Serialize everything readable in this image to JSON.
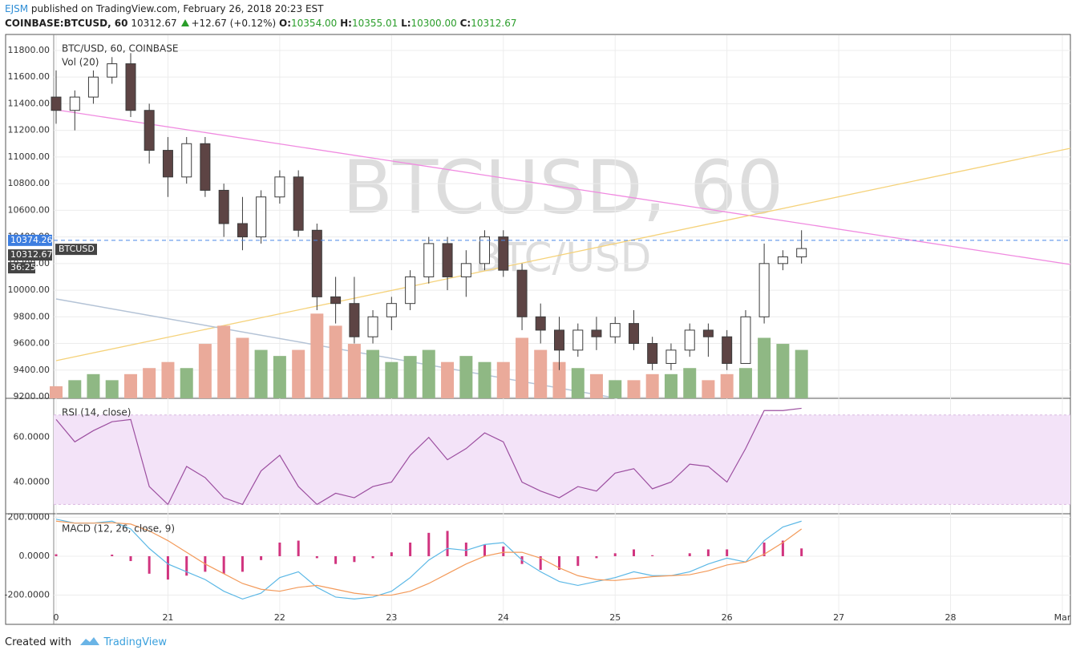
{
  "header": {
    "author": "EJSM",
    "published": "published on TradingView.com, February 26, 2018 20:23 EST",
    "symbol": "COINBASE:BTCUSD, 60",
    "last": "10312.67",
    "change": "+12.67 (+0.12%)",
    "o_label": "O:",
    "o": "10354.00",
    "h_label": "H:",
    "h": "10355.01",
    "l_label": "L:",
    "l": "10300.00",
    "c_label": "C:",
    "c": "10312.67"
  },
  "watermark": {
    "big": "BTCUSD, 60",
    "small": "BTC/USD"
  },
  "footer": {
    "created": "Created with",
    "brand": "TradingView"
  },
  "chart_data": {
    "type": "candlestick",
    "title": "BTC/USD, 60, COINBASE",
    "x": [
      20,
      20.167,
      20.333,
      20.5,
      20.667,
      20.833,
      21,
      21.167,
      21.333,
      21.5,
      21.667,
      21.833,
      22,
      22.167,
      22.333,
      22.5,
      22.667,
      22.833,
      23,
      23.167,
      23.333,
      23.5,
      23.667,
      23.833,
      24,
      24.167,
      24.333,
      24.5,
      24.667,
      24.833,
      25,
      25.167,
      25.333,
      25.5,
      25.667,
      25.833,
      26,
      26.167,
      26.333,
      26.5,
      26.667
    ],
    "open": [
      11450,
      11350,
      11450,
      11600,
      11700,
      11350,
      11050,
      10850,
      11100,
      10750,
      10500,
      10400,
      10700,
      10850,
      10450,
      9950,
      9900,
      9650,
      9800,
      9900,
      10100,
      10350,
      10100,
      10200,
      10400,
      10150,
      9800,
      9700,
      9550,
      9700,
      9650,
      9750,
      9600,
      9450,
      9550,
      9700,
      9650,
      9450,
      9800,
      10200,
      10250
    ],
    "high": [
      11650,
      11500,
      11650,
      11750,
      11780,
      11400,
      11150,
      11150,
      11150,
      10800,
      10700,
      10750,
      10900,
      10900,
      10500,
      10100,
      10100,
      9850,
      9950,
      10150,
      10400,
      10400,
      10300,
      10450,
      10450,
      10200,
      9900,
      9800,
      9750,
      9800,
      9800,
      9850,
      9650,
      9600,
      9750,
      9750,
      9700,
      9850,
      10350,
      10300,
      10450
    ],
    "low": [
      11250,
      11200,
      11400,
      11550,
      11300,
      10950,
      10700,
      10800,
      10700,
      10400,
      10300,
      10350,
      10650,
      10400,
      9850,
      9750,
      9600,
      9600,
      9700,
      9850,
      10050,
      10000,
      9950,
      10150,
      10100,
      9700,
      9600,
      9400,
      9500,
      9550,
      9600,
      9550,
      9400,
      9400,
      9500,
      9500,
      9400,
      9450,
      9750,
      10150,
      10200
    ],
    "close": [
      11350,
      11450,
      11600,
      11700,
      11350,
      11050,
      10850,
      11100,
      10750,
      10500,
      10400,
      10700,
      10850,
      10450,
      9950,
      9900,
      9650,
      9800,
      9900,
      10100,
      10350,
      10100,
      10200,
      10400,
      10150,
      9800,
      9700,
      9550,
      9700,
      9650,
      9750,
      9600,
      9450,
      9550,
      9700,
      9650,
      9450,
      9800,
      10200,
      10250,
      10312.67
    ],
    "up_color": "#ffffff",
    "down_color": "#5d4444",
    "line_color": "#3b3b3b",
    "marker_price": 10374.26,
    "price_tag": "BTCUSD",
    "countdown": "36:25",
    "xlim": [
      20,
      29
    ],
    "xticks": [
      {
        "value": 20,
        "label": "0"
      },
      21,
      22,
      23,
      24,
      25,
      26,
      27,
      28,
      {
        "value": 29,
        "label": "Mar"
      }
    ],
    "ylim": [
      9188,
      11914
    ],
    "yticks": [
      {
        "value": 9200,
        "label": "9200.00"
      },
      {
        "value": 9400,
        "label": "9400.00"
      },
      {
        "value": 9600,
        "label": "9600.00"
      },
      {
        "value": 9800,
        "label": "9800.00"
      },
      {
        "value": 10000,
        "label": "10000.00"
      },
      {
        "value": 10200,
        "label": "10200.00"
      },
      {
        "value": 10400,
        "label": "10400.00"
      },
      {
        "value": 10600,
        "label": "10600.00"
      },
      {
        "value": 10800,
        "label": "10800.00"
      },
      {
        "value": 11000,
        "label": "11000.00"
      },
      {
        "value": 11200,
        "label": "11200.00"
      },
      {
        "value": 11400,
        "label": "11400.00"
      },
      {
        "value": 11600,
        "label": "11600.00"
      },
      {
        "value": 11800,
        "label": "11800.00"
      }
    ],
    "grid": true,
    "volume": {
      "name": "Vol (20)",
      "up_color": "#8fb884",
      "down_color": "#eaaa9a",
      "ylim": [
        0,
        100
      ],
      "values": [
        10,
        15,
        20,
        15,
        20,
        25,
        30,
        25,
        45,
        60,
        50,
        40,
        35,
        40,
        70,
        60,
        45,
        40,
        30,
        35,
        40,
        30,
        35,
        30,
        30,
        50,
        40,
        30,
        25,
        20,
        15,
        15,
        20,
        20,
        25,
        15,
        20,
        25,
        50,
        45,
        40
      ]
    },
    "rsi": {
      "name": "RSI (14, close)",
      "color": "#9c4fa0",
      "band_color": "#f3e3f8",
      "band": [
        30,
        70
      ],
      "ylim": [
        26.2,
        77.1
      ],
      "yticks": [
        {
          "value": 60,
          "label": "60.0000"
        },
        {
          "value": 40,
          "label": "40.0000"
        }
      ],
      "values": [
        68,
        58,
        63,
        67,
        68,
        38,
        30,
        47,
        42,
        33,
        30,
        45,
        52,
        38,
        30,
        35,
        33,
        38,
        40,
        52,
        60,
        50,
        55,
        62,
        58,
        40,
        36,
        33,
        38,
        36,
        44,
        46,
        37,
        40,
        48,
        47,
        40,
        55,
        72,
        72,
        73
      ]
    },
    "macd": {
      "name": "MACD (12, 26, close, 9)",
      "ylim": [
        -346,
        214
      ],
      "yticks": [
        {
          "value": 200,
          "label": "200.0000"
        },
        {
          "value": 0,
          "label": "0.0000"
        },
        {
          "value": -200,
          "label": "-200.0000"
        }
      ],
      "series": [
        {
          "name": "MACD",
          "color": "#5cb8e6",
          "values": [
            190,
            170,
            170,
            180,
            140,
            40,
            -40,
            -80,
            -120,
            -180,
            -220,
            -190,
            -110,
            -80,
            -160,
            -210,
            -220,
            -210,
            -180,
            -110,
            -20,
            40,
            30,
            60,
            70,
            -20,
            -80,
            -130,
            -150,
            -130,
            -110,
            -80,
            -100,
            -100,
            -80,
            -40,
            -10,
            -30,
            80,
            150,
            180
          ]
        },
        {
          "name": "Signal",
          "color": "#f39a5a",
          "values": [
            180,
            170,
            170,
            172,
            165,
            130,
            80,
            20,
            -40,
            -90,
            -140,
            -170,
            -180,
            -160,
            -150,
            -170,
            -190,
            -200,
            -200,
            -180,
            -140,
            -90,
            -40,
            0,
            20,
            20,
            -10,
            -60,
            -100,
            -120,
            -125,
            -115,
            -105,
            -100,
            -95,
            -75,
            -45,
            -30,
            10,
            70,
            140
          ]
        },
        {
          "name": "Histogram",
          "color": "#d1347f",
          "values": [
            10,
            0,
            0,
            8,
            -25,
            -90,
            -120,
            -100,
            -80,
            -90,
            -80,
            -20,
            70,
            80,
            -10,
            -40,
            -30,
            -10,
            20,
            70,
            120,
            130,
            70,
            60,
            50,
            -40,
            -70,
            -70,
            -50,
            -10,
            15,
            35,
            5,
            0,
            15,
            35,
            35,
            0,
            70,
            80,
            40
          ]
        }
      ]
    }
  }
}
